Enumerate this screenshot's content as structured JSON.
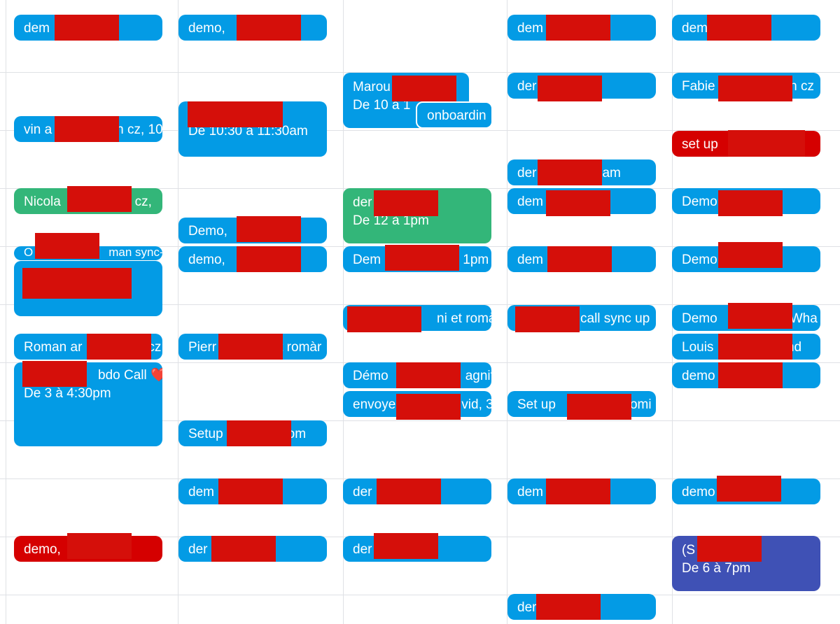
{
  "colors": {
    "event_blue": "#039be5",
    "event_green": "#33b679",
    "event_red": "#d50000",
    "event_indigo": "#3f51b5",
    "redaction": "#d50f0a",
    "grid_line": "#dfe1e5"
  },
  "events": {
    "c1": [
      {
        "title": "dem",
        "time": ""
      },
      {
        "title": "vin a",
        "suffix": "n cz, 10",
        "time": ""
      },
      {
        "title": "Nicola",
        "suffix": "n cz,",
        "time": ""
      },
      {
        "title": "O",
        "suffix": "man sync-u",
        "time": ""
      },
      {
        "title": "",
        "time": ""
      },
      {
        "title": "Roman ar",
        "suffix": "cz",
        "time": ""
      },
      {
        "title": "",
        "suffix": "bdo Call ❤️",
        "time": "De 3 à 4:30pm"
      },
      {
        "title": "demo,",
        "time": ""
      }
    ],
    "c2": [
      {
        "title": "demo, ",
        "time": ""
      },
      {
        "title": "",
        "time": "De 10:30 à 11:30am"
      },
      {
        "title": "Demo,",
        "time": ""
      },
      {
        "title": "demo, ",
        "time": ""
      },
      {
        "title": "Pierr",
        "suffix": "t romàr",
        "time": ""
      },
      {
        "title": "Setup",
        "suffix": "om",
        "time": ""
      },
      {
        "title": "dem",
        "time": ""
      },
      {
        "title": "der",
        "time": ""
      }
    ],
    "c3": [
      {
        "title": "Marou",
        "time": "De 10 à 1"
      },
      {
        "title": "onboardin",
        "time": ""
      },
      {
        "title": "der",
        "time": "De 12 à 1pm"
      },
      {
        "title": "Dem",
        "suffix": "o, 1pm",
        "time": ""
      },
      {
        "title": "",
        "suffix": "ni et romà",
        "time": ""
      },
      {
        "title": "Démo",
        "suffix": "agnit",
        "time": ""
      },
      {
        "title": "envoye",
        "suffix": "vid, 3",
        "time": ""
      },
      {
        "title": "der",
        "time": ""
      },
      {
        "title": "der",
        "time": ""
      }
    ],
    "c4": [
      {
        "title": "dem",
        "time": ""
      },
      {
        "title": "der",
        "time": ""
      },
      {
        "title": "der",
        "suffix": "am",
        "time": ""
      },
      {
        "title": "dem",
        "time": ""
      },
      {
        "title": "dem",
        "time": ""
      },
      {
        "title": "",
        "suffix": "call sync up",
        "time": ""
      },
      {
        "title": "Set up",
        "suffix": "omi",
        "time": ""
      },
      {
        "title": "dem",
        "time": ""
      },
      {
        "title": "der",
        "time": ""
      }
    ],
    "c5": [
      {
        "title": "dem",
        "time": ""
      },
      {
        "title": "Fabie",
        "suffix": "an cz",
        "time": ""
      },
      {
        "title": "set up",
        "time": ""
      },
      {
        "title": "Demo",
        "time": ""
      },
      {
        "title": "Demo",
        "time": ""
      },
      {
        "title": "Demo",
        "suffix": "Wha",
        "time": ""
      },
      {
        "title": "Louis",
        "suffix": "and",
        "time": ""
      },
      {
        "title": "demo",
        "time": ""
      },
      {
        "title": "demo",
        "time": ""
      },
      {
        "title": "(S",
        "time": "De 6 à 7pm"
      }
    ]
  }
}
